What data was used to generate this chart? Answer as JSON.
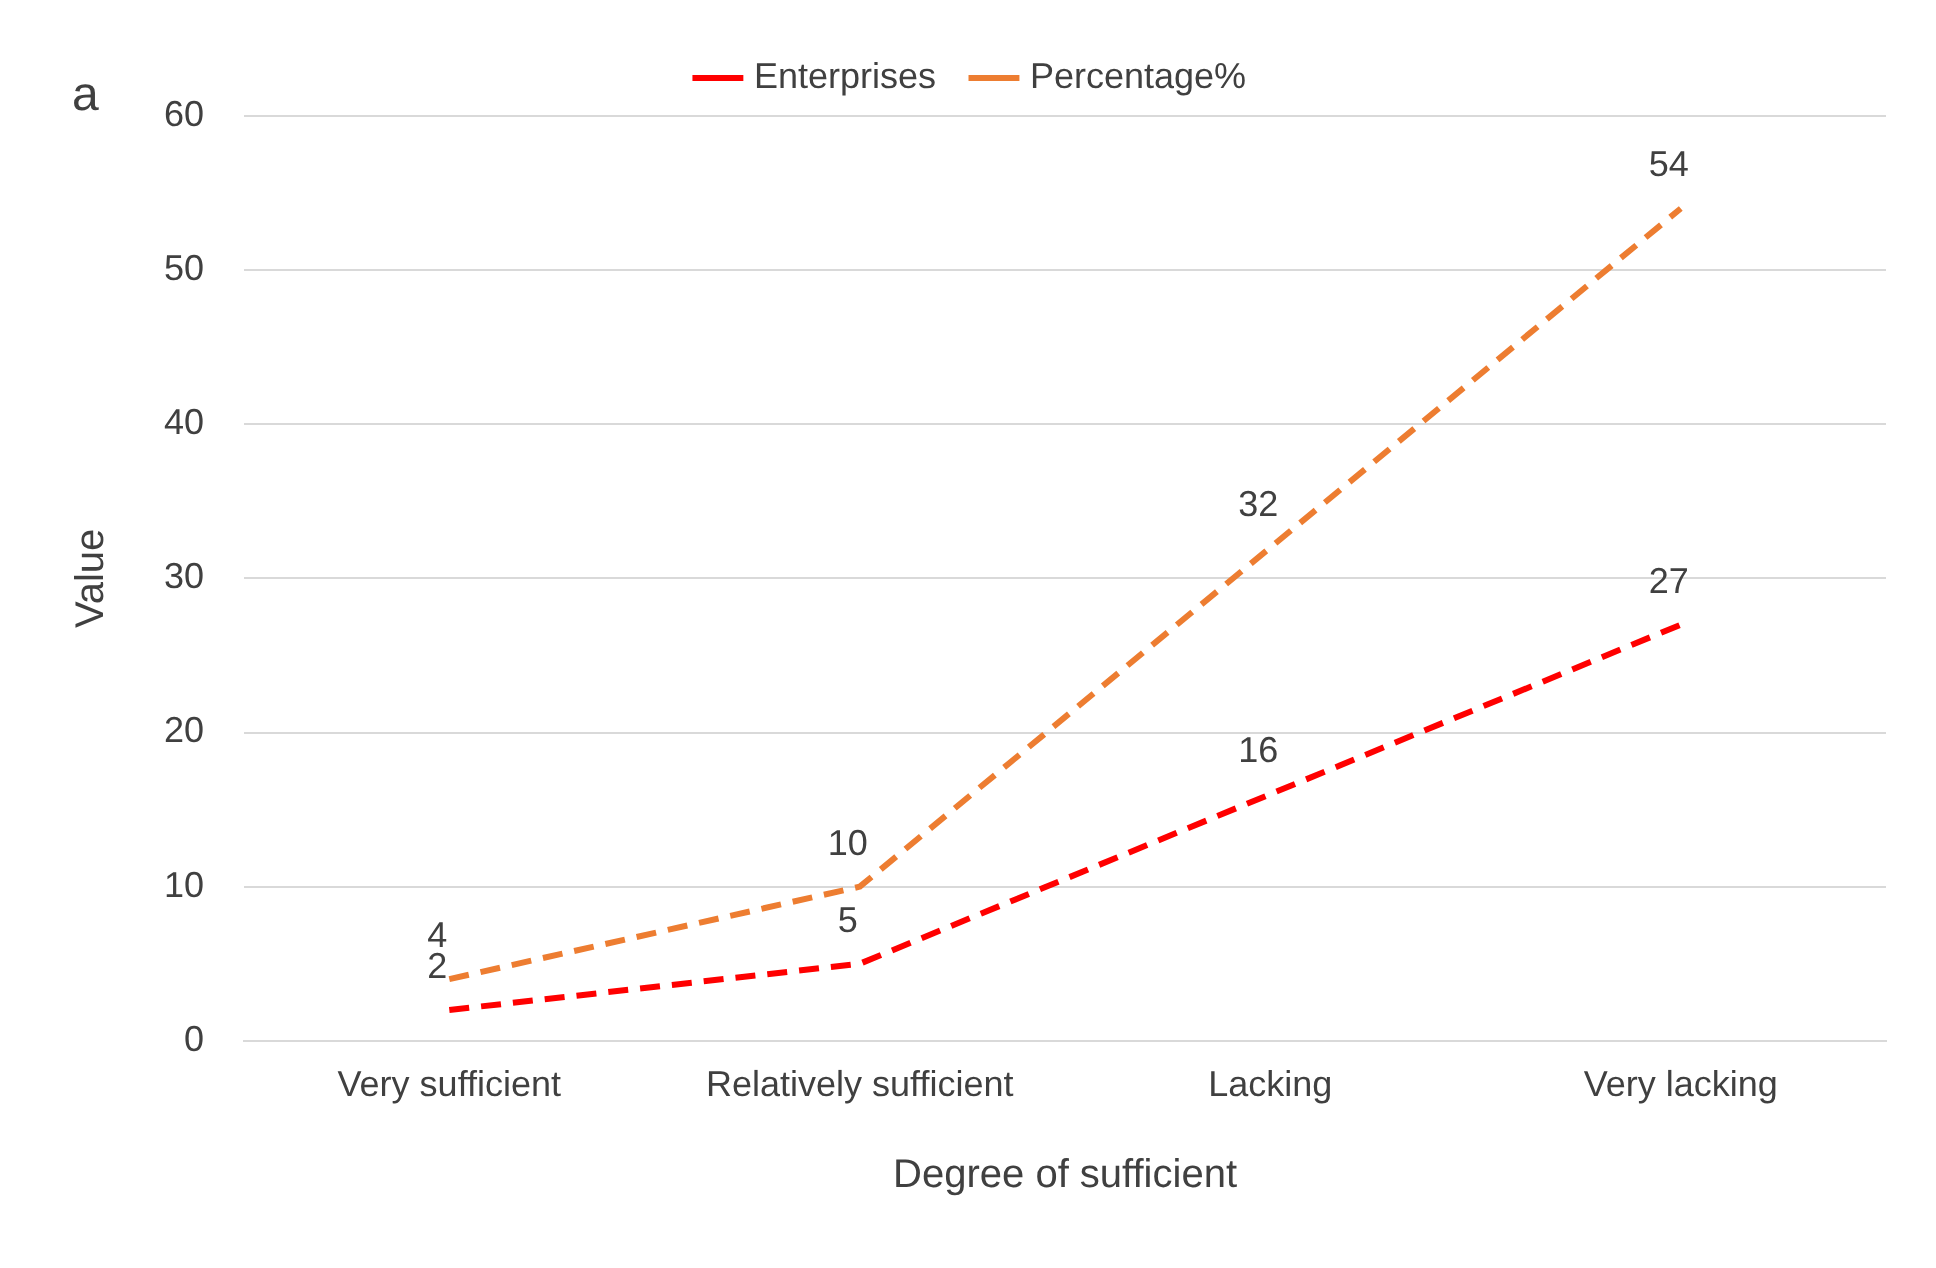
{
  "chart_data": {
    "type": "line",
    "annotations": [
      "a"
    ],
    "xlabel": "Degree of sufficient",
    "ylabel": "Value",
    "categories": [
      "Very sufficient",
      "Relatively sufficient",
      "Lacking",
      "Very lacking"
    ],
    "series": [
      {
        "name": "Enterprises",
        "color": "#ff0000",
        "values": [
          2,
          5,
          16,
          27
        ]
      },
      {
        "name": "Percentage%",
        "color": "#ed7d31",
        "values": [
          4,
          10,
          32,
          54
        ]
      }
    ],
    "ylim": [
      0,
      60
    ],
    "yticks": [
      0,
      10,
      20,
      30,
      40,
      50,
      60
    ],
    "grid": "y",
    "legend": "top",
    "marker": "none",
    "line_style": "dashed",
    "data_labels": true
  }
}
